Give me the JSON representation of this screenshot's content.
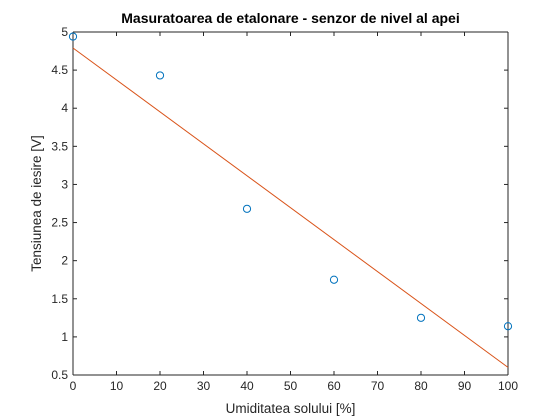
{
  "chart_data": {
    "type": "scatter",
    "title": "Masuratoarea de etalonare - senzor de nivel al apei",
    "xlabel": "Umiditatea solului [%]",
    "ylabel": "Tensiunea de iesire [V]",
    "xlim": [
      0,
      100
    ],
    "ylim": [
      0.5,
      5
    ],
    "xticks": [
      0,
      10,
      20,
      30,
      40,
      50,
      60,
      70,
      80,
      90,
      100
    ],
    "xtick_labels": [
      "0",
      "10",
      "20",
      "30",
      "40",
      "50",
      "60",
      "70",
      "80",
      "90",
      "100"
    ],
    "yticks": [
      0.5,
      1,
      1.5,
      2,
      2.5,
      3,
      3.5,
      4,
      4.5,
      5
    ],
    "ytick_labels": [
      "0.5",
      "1",
      "1.5",
      "2",
      "2.5",
      "3",
      "3.5",
      "4",
      "4.5",
      "5"
    ],
    "grid": false,
    "legend": "none",
    "series": [
      {
        "kind": "scatter",
        "marker": "circle",
        "color": "#0072BD",
        "x": [
          0,
          20,
          40,
          60,
          80,
          100
        ],
        "y": [
          4.94,
          4.43,
          2.68,
          1.75,
          1.25,
          1.14
        ]
      },
      {
        "kind": "line",
        "color": "#D95319",
        "x": [
          0,
          100
        ],
        "y": [
          4.79,
          0.6
        ]
      }
    ]
  }
}
